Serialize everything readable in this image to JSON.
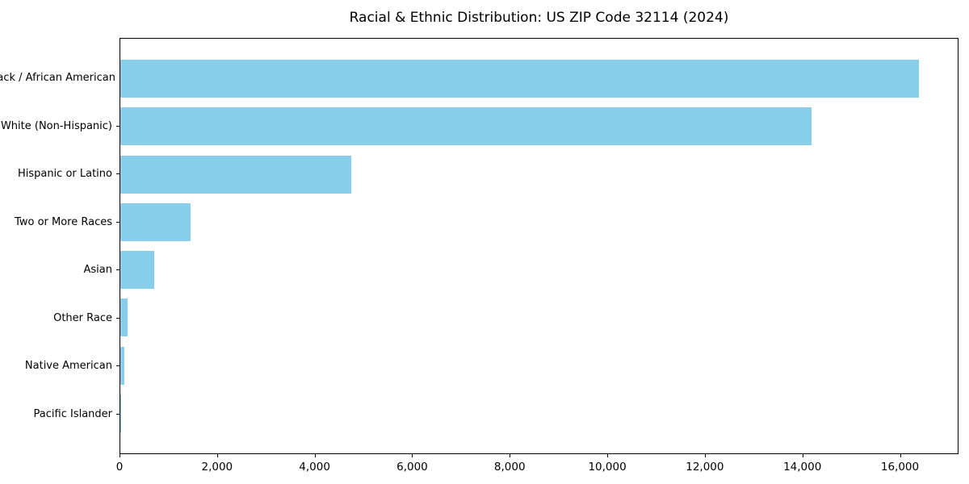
{
  "chart_data": {
    "type": "bar",
    "orientation": "horizontal",
    "title": "Racial & Ethnic Distribution: US ZIP Code 32114 (2024)",
    "categories": [
      "Black / African American",
      "White (Non-Hispanic)",
      "Hispanic or Latino",
      "Two or More Races",
      "Asian",
      "Other Race",
      "Native American",
      "Pacific Islander"
    ],
    "values": [
      16400,
      14200,
      4750,
      1450,
      700,
      150,
      85,
      20
    ],
    "bar_color": "#87CEEB",
    "xlabel": "",
    "ylabel": "",
    "xlim": [
      0,
      17200
    ],
    "xticks": [
      0,
      2000,
      4000,
      6000,
      8000,
      10000,
      12000,
      14000,
      16000
    ],
    "xtick_labels": [
      "0",
      "2,000",
      "4,000",
      "6,000",
      "8,000",
      "10,000",
      "12,000",
      "14,000",
      "16,000"
    ],
    "grid": false,
    "legend_position": "none"
  }
}
